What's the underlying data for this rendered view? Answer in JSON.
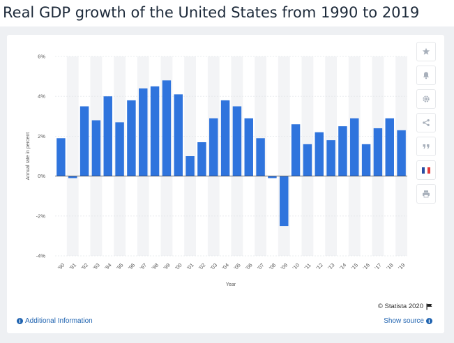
{
  "page": {
    "title": "Real GDP growth of the United States from 1990 to 2019"
  },
  "toolbar": {
    "items": [
      "star-icon",
      "bell-icon",
      "gear-icon",
      "share-icon",
      "quote-icon",
      "flag-fr-icon",
      "print-icon"
    ]
  },
  "footer": {
    "additional_info": "Additional Information",
    "show_source": "Show source",
    "copyright": "© Statista 2020"
  },
  "colors": {
    "bar": "#2f74dd",
    "band": "#f3f4f6",
    "link": "#1f63b0"
  },
  "chart_data": {
    "type": "bar",
    "categories": [
      "'90",
      "'91",
      "'92",
      "'93",
      "'94",
      "'95",
      "'96",
      "'97",
      "'98",
      "'99",
      "'00",
      "'01",
      "'02",
      "'03",
      "'04",
      "'05",
      "'06",
      "'07",
      "'08",
      "'09",
      "'10",
      "'11",
      "'12",
      "'13",
      "'14",
      "'15",
      "'16",
      "'17",
      "'18",
      "'19"
    ],
    "values": [
      1.9,
      -0.1,
      3.5,
      2.8,
      4.0,
      2.7,
      3.8,
      4.4,
      4.5,
      4.8,
      4.1,
      1.0,
      1.7,
      2.9,
      3.8,
      3.5,
      2.9,
      1.9,
      -0.1,
      -2.5,
      2.6,
      1.6,
      2.2,
      1.8,
      2.5,
      2.9,
      1.6,
      2.4,
      2.9,
      2.3
    ],
    "ylabel": "Annual rate in percent",
    "xlabel": "Year",
    "ylim": [
      -4,
      6
    ],
    "yticks": [
      -4,
      -2,
      0,
      2,
      4,
      6
    ],
    "ytick_labels": [
      "-4%",
      "-2%",
      "0%",
      "2%",
      "4%",
      "6%"
    ],
    "grid": true,
    "legend": "none"
  }
}
